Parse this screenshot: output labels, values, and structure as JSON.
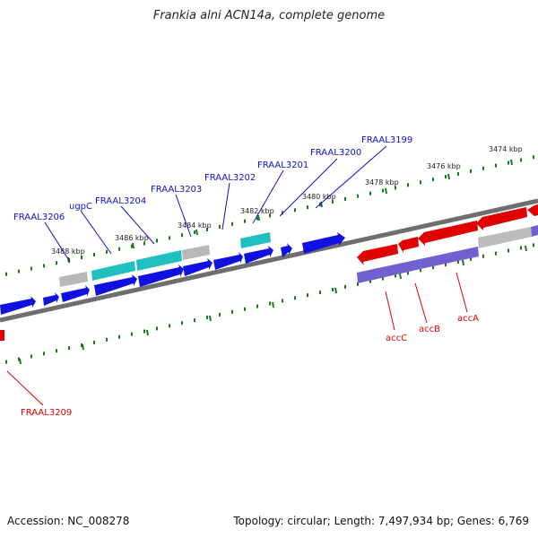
{
  "title": "Frankia alni ACN14a, complete genome",
  "footer": {
    "accession": "Accession: NC_008278",
    "topology": "Topology: circular; Length: 7,497,934 bp; Genes: 6,769"
  },
  "colors": {
    "backbone": "#8a8a8a",
    "tick": "#1a7a1a",
    "gene_forward": "#1010e0",
    "gene_reverse": "#e00000",
    "gene_cyan": "#20c8c8",
    "gene_gray": "#bcbcbc",
    "gene_purple": "#7060d0",
    "label_blue": "#1010c8",
    "label_red": "#e00000"
  },
  "ticks": [
    {
      "label": "3488 kbp"
    },
    {
      "label": "3486 kbp"
    },
    {
      "label": "3484 kbp"
    },
    {
      "label": "3482 kbp"
    },
    {
      "label": "3480 kbp"
    },
    {
      "label": "3478 kbp"
    },
    {
      "label": "3476 kbp"
    },
    {
      "label": "3474 kbp"
    }
  ],
  "gene_labels": [
    {
      "name": "FRAAL3206",
      "strand": "forward"
    },
    {
      "name": "ugpC",
      "strand": "forward"
    },
    {
      "name": "FRAAL3204",
      "strand": "forward"
    },
    {
      "name": "FRAAL3203",
      "strand": "forward"
    },
    {
      "name": "FRAAL3202",
      "strand": "forward"
    },
    {
      "name": "FRAAL3201",
      "strand": "forward"
    },
    {
      "name": "FRAAL3200",
      "strand": "forward"
    },
    {
      "name": "FRAAL3199",
      "strand": "forward"
    },
    {
      "name": "accC",
      "strand": "reverse"
    },
    {
      "name": "accB",
      "strand": "reverse"
    },
    {
      "name": "accA",
      "strand": "reverse"
    },
    {
      "name": "FRAAL3209",
      "strand": "reverse"
    }
  ]
}
